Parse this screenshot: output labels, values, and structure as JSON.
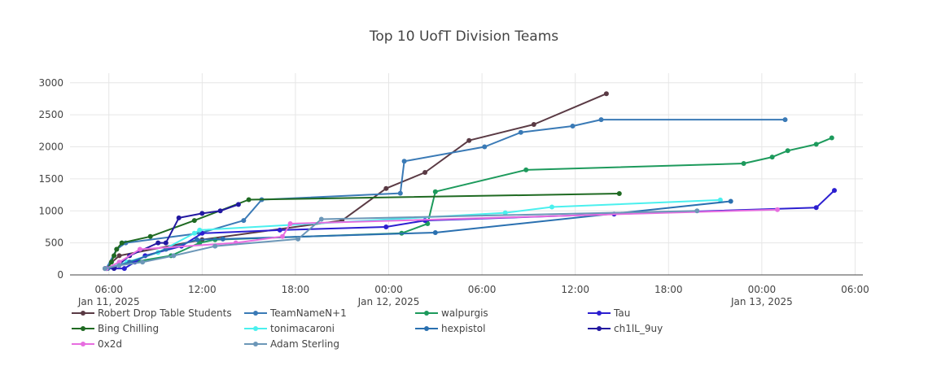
{
  "chart_data": {
    "type": "line",
    "title": "Top 10 UofT Division Teams",
    "xlabel": "",
    "ylabel": "",
    "xlim": [
      "2025-01-11T03:30",
      "2025-01-13T06:30"
    ],
    "ylim": [
      0,
      3150
    ],
    "yticks": [
      0,
      500,
      1000,
      1500,
      2000,
      2500,
      3000
    ],
    "ytick_labels": [
      "0",
      "500",
      "1000",
      "1500",
      "2000",
      "2500",
      "3000"
    ],
    "xticks": [
      "2025-01-11T06:00",
      "2025-01-11T12:00",
      "2025-01-11T18:00",
      "2025-01-12T00:00",
      "2025-01-12T06:00",
      "2025-01-12T12:00",
      "2025-01-12T18:00",
      "2025-01-13T00:00",
      "2025-01-13T06:00"
    ],
    "xtick_labels": [
      "06:00",
      "12:00",
      "18:00",
      "00:00",
      "06:00",
      "12:00",
      "18:00",
      "00:00",
      "06:00"
    ],
    "xtick_sublabels": [
      "Jan 11, 2025",
      "",
      "",
      "Jan 12, 2025",
      "",
      "",
      "",
      "Jan 13, 2025",
      ""
    ],
    "grid": true,
    "legend_position": "bottom",
    "series": [
      {
        "name": "Robert Drop Table Students",
        "color": "#5a3a44",
        "points": [
          [
            "2025-01-11T05:45",
            100
          ],
          [
            "2025-01-11T06:40",
            300
          ],
          [
            "2025-01-11T12:00",
            550
          ],
          [
            "2025-01-11T21:00",
            850
          ],
          [
            "2025-01-11T23:50",
            1350
          ],
          [
            "2025-01-12T02:20",
            1600
          ],
          [
            "2025-01-12T05:10",
            2100
          ],
          [
            "2025-01-12T09:20",
            2350
          ],
          [
            "2025-01-12T14:00",
            2830
          ]
        ]
      },
      {
        "name": "TeamNameN+1",
        "color": "#3a7ab6",
        "points": [
          [
            "2025-01-11T05:50",
            100
          ],
          [
            "2025-01-11T06:30",
            400
          ],
          [
            "2025-01-11T07:05",
            500
          ],
          [
            "2025-01-11T11:50",
            650
          ],
          [
            "2025-01-11T14:40",
            850
          ],
          [
            "2025-01-11T15:50",
            1175
          ],
          [
            "2025-01-12T00:45",
            1275
          ],
          [
            "2025-01-12T01:00",
            1775
          ],
          [
            "2025-01-12T06:10",
            2000
          ],
          [
            "2025-01-12T08:30",
            2225
          ],
          [
            "2025-01-12T11:50",
            2325
          ],
          [
            "2025-01-12T13:40",
            2425
          ],
          [
            "2025-01-13T01:30",
            2425
          ]
        ]
      },
      {
        "name": "walpurgis",
        "color": "#1d9a5c",
        "points": [
          [
            "2025-01-11T05:50",
            100
          ],
          [
            "2025-01-11T07:30",
            200
          ],
          [
            "2025-01-11T10:00",
            300
          ],
          [
            "2025-01-11T11:50",
            500
          ],
          [
            "2025-01-11T12:50",
            550
          ],
          [
            "2025-01-12T00:50",
            650
          ],
          [
            "2025-01-12T02:30",
            800
          ],
          [
            "2025-01-12T03:00",
            1300
          ],
          [
            "2025-01-12T08:50",
            1640
          ],
          [
            "2025-01-12T22:50",
            1740
          ],
          [
            "2025-01-13T00:40",
            1840
          ],
          [
            "2025-01-13T01:40",
            1940
          ],
          [
            "2025-01-13T03:30",
            2040
          ],
          [
            "2025-01-13T04:30",
            2140
          ]
        ]
      },
      {
        "name": "Tau",
        "color": "#2c1fd0",
        "points": [
          [
            "2025-01-11T05:50",
            100
          ],
          [
            "2025-01-11T07:00",
            100
          ],
          [
            "2025-01-11T07:40",
            200
          ],
          [
            "2025-01-11T08:20",
            300
          ],
          [
            "2025-01-11T10:40",
            450
          ],
          [
            "2025-01-11T12:00",
            650
          ],
          [
            "2025-01-11T17:00",
            700
          ],
          [
            "2025-01-11T23:50",
            750
          ],
          [
            "2025-01-12T02:20",
            850
          ],
          [
            "2025-01-12T14:30",
            950
          ],
          [
            "2025-01-13T03:30",
            1050
          ],
          [
            "2025-01-13T04:40",
            1320
          ]
        ]
      },
      {
        "name": "Bing Chilling",
        "color": "#1f6a22",
        "points": [
          [
            "2025-01-11T05:55",
            100
          ],
          [
            "2025-01-11T06:10",
            200
          ],
          [
            "2025-01-11T06:20",
            300
          ],
          [
            "2025-01-11T06:30",
            400
          ],
          [
            "2025-01-11T06:50",
            500
          ],
          [
            "2025-01-11T08:40",
            600
          ],
          [
            "2025-01-11T11:30",
            850
          ],
          [
            "2025-01-11T15:00",
            1175
          ],
          [
            "2025-01-12T14:50",
            1270
          ]
        ]
      },
      {
        "name": "tonimacaroni",
        "color": "#4af0ee",
        "points": [
          [
            "2025-01-11T05:50",
            100
          ],
          [
            "2025-01-11T07:10",
            200
          ],
          [
            "2025-01-11T09:10",
            350
          ],
          [
            "2025-01-11T11:30",
            650
          ],
          [
            "2025-01-11T11:50",
            700
          ],
          [
            "2025-01-12T07:30",
            970
          ],
          [
            "2025-01-12T10:30",
            1060
          ],
          [
            "2025-01-12T21:20",
            1170
          ]
        ]
      },
      {
        "name": "hexpistol",
        "color": "#2a70b0",
        "points": [
          [
            "2025-01-11T05:55",
            100
          ],
          [
            "2025-01-11T07:20",
            200
          ],
          [
            "2025-01-11T09:40",
            400
          ],
          [
            "2025-01-11T11:40",
            550
          ],
          [
            "2025-01-11T13:20",
            560
          ],
          [
            "2025-01-12T03:00",
            660
          ],
          [
            "2025-01-12T22:00",
            1150
          ]
        ]
      },
      {
        "name": "ch1lL_9uy",
        "color": "#2218a0",
        "points": [
          [
            "2025-01-11T06:20",
            100
          ],
          [
            "2025-01-11T07:20",
            300
          ],
          [
            "2025-01-11T09:10",
            500
          ],
          [
            "2025-01-11T09:40",
            500
          ],
          [
            "2025-01-11T10:30",
            890
          ],
          [
            "2025-01-11T12:00",
            960
          ],
          [
            "2025-01-11T13:10",
            1000
          ],
          [
            "2025-01-11T14:20",
            1100
          ]
        ]
      },
      {
        "name": "0x2d",
        "color": "#e76ee0",
        "points": [
          [
            "2025-01-11T05:50",
            100
          ],
          [
            "2025-01-11T06:40",
            200
          ],
          [
            "2025-01-11T08:00",
            400
          ],
          [
            "2025-01-11T14:10",
            500
          ],
          [
            "2025-01-11T17:10",
            600
          ],
          [
            "2025-01-11T17:40",
            800
          ],
          [
            "2025-01-13T01:00",
            1020
          ]
        ]
      },
      {
        "name": "Adam Sterling",
        "color": "#6c97b8",
        "points": [
          [
            "2025-01-11T05:45",
            100
          ],
          [
            "2025-01-11T06:40",
            150
          ],
          [
            "2025-01-11T08:10",
            200
          ],
          [
            "2025-01-11T10:10",
            300
          ],
          [
            "2025-01-11T12:50",
            450
          ],
          [
            "2025-01-11T18:10",
            560
          ],
          [
            "2025-01-11T19:40",
            870
          ],
          [
            "2025-01-12T19:50",
            1000
          ]
        ]
      }
    ]
  }
}
